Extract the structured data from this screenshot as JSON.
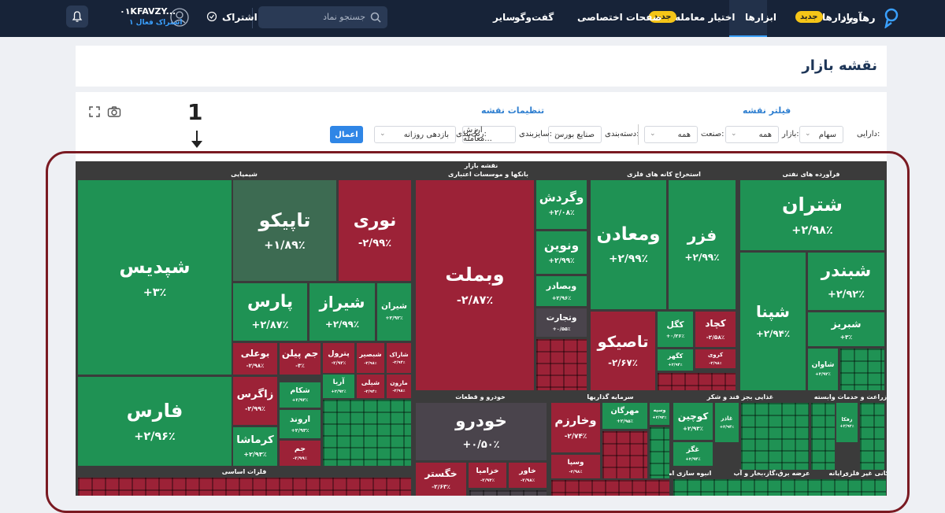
{
  "nav": {
    "logo": "رهآورد",
    "items": [
      "بازارها",
      "ابزارها",
      "اختیار معامله",
      "صفحات اختصاصی",
      "گفت‌وگو",
      "سایر"
    ],
    "badge": "جدید",
    "search": "جستجو نماد",
    "subscribe": "اشتراک",
    "user": "۰۱KFAVZY...",
    "user_sub": "۱ اشتراک فعال"
  },
  "header": {
    "title": "نقشه بازار"
  },
  "filters": {
    "filter_title": "فیلتر نقشه",
    "settings_title": "تنظیمات نقشه",
    "fields": [
      {
        "label": "دارایی:",
        "value": "سهام"
      },
      {
        "label": "بازار:",
        "value": "همه"
      },
      {
        "label": "صنعت:",
        "value": "همه"
      },
      {
        "label": "دسته‌بندی:",
        "value": "صنایع بورس"
      },
      {
        "label": "سایزبندی:",
        "value": "ارزش معامله..."
      },
      {
        "label": "رنگ‌بندی:",
        "value": "بازدهی روزانه"
      }
    ],
    "apply": "اعمال"
  },
  "annotation": {
    "number": "1"
  },
  "treemap": {
    "title": "نقشه بازار",
    "sectors": [
      "شیمیایی",
      "بانکها و موسسات اعتباری",
      "استخراج کانه های فلزی",
      "فرآورده های نفتی",
      "فلزات اساسی",
      "خودرو و قطعات",
      "سرمایه گذاریها",
      "غذایی بجز قند و شکر",
      "زراعت و خدمات وابسته",
      "انبوه سازی املاک و",
      "عرضه برق،گاز،بخار و آب",
      "رایانه",
      "کانی غیر فلزی"
    ],
    "tiles": [
      {
        "label": "شپدیس",
        "value": "+۳٪"
      },
      {
        "label": "فارس",
        "value": "+۲/۹۶٪"
      },
      {
        "label": "تاپیکو",
        "value": "+۱/۸۹٪"
      },
      {
        "label": "نوری",
        "value": "-۲/۹۹٪"
      },
      {
        "label": "پارس",
        "value": "+۲/۸۷٪"
      },
      {
        "label": "شیراز",
        "value": "+۲/۹۹٪"
      },
      {
        "label": "شیران",
        "value": "+۲/۹۲٪"
      },
      {
        "label": "بوعلی",
        "value": "-۲/۹۸٪"
      },
      {
        "label": "جم پیلن",
        "value": "-۳٪"
      },
      {
        "label": "پترول",
        "value": "-۲/۹۳٪"
      },
      {
        "label": "شبصیر",
        "value": "-۲/۹۸٪"
      },
      {
        "label": "شاراک",
        "value": "-۲/۹۴٪"
      },
      {
        "label": "زاگرس",
        "value": "-۲/۹۹٪"
      },
      {
        "label": "کرماشا",
        "value": "+۲/۹۳٪"
      },
      {
        "label": "شکام",
        "value": "+۲/۹۳٪"
      },
      {
        "label": "اروند",
        "value": "+۲/۹۳٪"
      },
      {
        "label": "جم",
        "value": "-۲/۹۹٪"
      },
      {
        "label": "آریا",
        "value": "+۲/۹۲٪"
      },
      {
        "label": "شیلی",
        "value": "-۲/۹۴٪"
      },
      {
        "label": "مارون",
        "value": "-۲/۹۸٪"
      },
      {
        "label": "وبملت",
        "value": "-۲/۸۷٪"
      },
      {
        "label": "وگردش",
        "value": "+۲/۰۸٪"
      },
      {
        "label": "ونوین",
        "value": "+۲/۹۹٪"
      },
      {
        "label": "وبصادر",
        "value": "+۲/۹۶٪"
      },
      {
        "label": "وتجارت",
        "value": "+۰/۵۵٪"
      },
      {
        "label": "خودرو",
        "value": "+۰/۵۰٪"
      },
      {
        "label": "خگستر",
        "value": "-۲/۶۳٪"
      },
      {
        "label": "خزامیا",
        "value": "-۲/۹۴٪"
      },
      {
        "label": "خاور",
        "value": "-۲/۹۸٪"
      },
      {
        "label": "وخارزم",
        "value": "-۲/۷۴٪"
      },
      {
        "label": "وسپا",
        "value": "-۲/۹۸٪"
      },
      {
        "label": "مهرگان",
        "value": "+۲/۹۵٪"
      },
      {
        "label": "وسپه",
        "value": "+۲/۹۲٪"
      },
      {
        "label": "ومعادن",
        "value": "+۲/۹۹٪"
      },
      {
        "label": "فزر",
        "value": "+۲/۹۹٪"
      },
      {
        "label": "تاصیکو",
        "value": "-۲/۶۷٪"
      },
      {
        "label": "کگل",
        "value": "+۰/۲۶٪"
      },
      {
        "label": "کچاد",
        "value": "-۲/۵۸٪"
      },
      {
        "label": "کگهر",
        "value": "+۲/۹۴٪"
      },
      {
        "label": "کروی",
        "value": "-۲/۹۸٪"
      },
      {
        "label": "شتران",
        "value": "+۲/۹۸٪"
      },
      {
        "label": "شپنا",
        "value": "+۲/۹۴٪"
      },
      {
        "label": "شبندر",
        "value": "+۲/۹۲٪"
      },
      {
        "label": "شبریز",
        "value": "+۳٪"
      },
      {
        "label": "شاوان",
        "value": "+۲/۹۲٪"
      },
      {
        "label": "کوچین",
        "value": "+۲/۹۳٪"
      },
      {
        "label": "غگز",
        "value": "+۲/۹۴٪"
      },
      {
        "label": "غاذر",
        "value": "+۲/۹۴٪"
      },
      {
        "label": "زفکا",
        "value": "+۲/۹۲٪"
      }
    ]
  }
}
